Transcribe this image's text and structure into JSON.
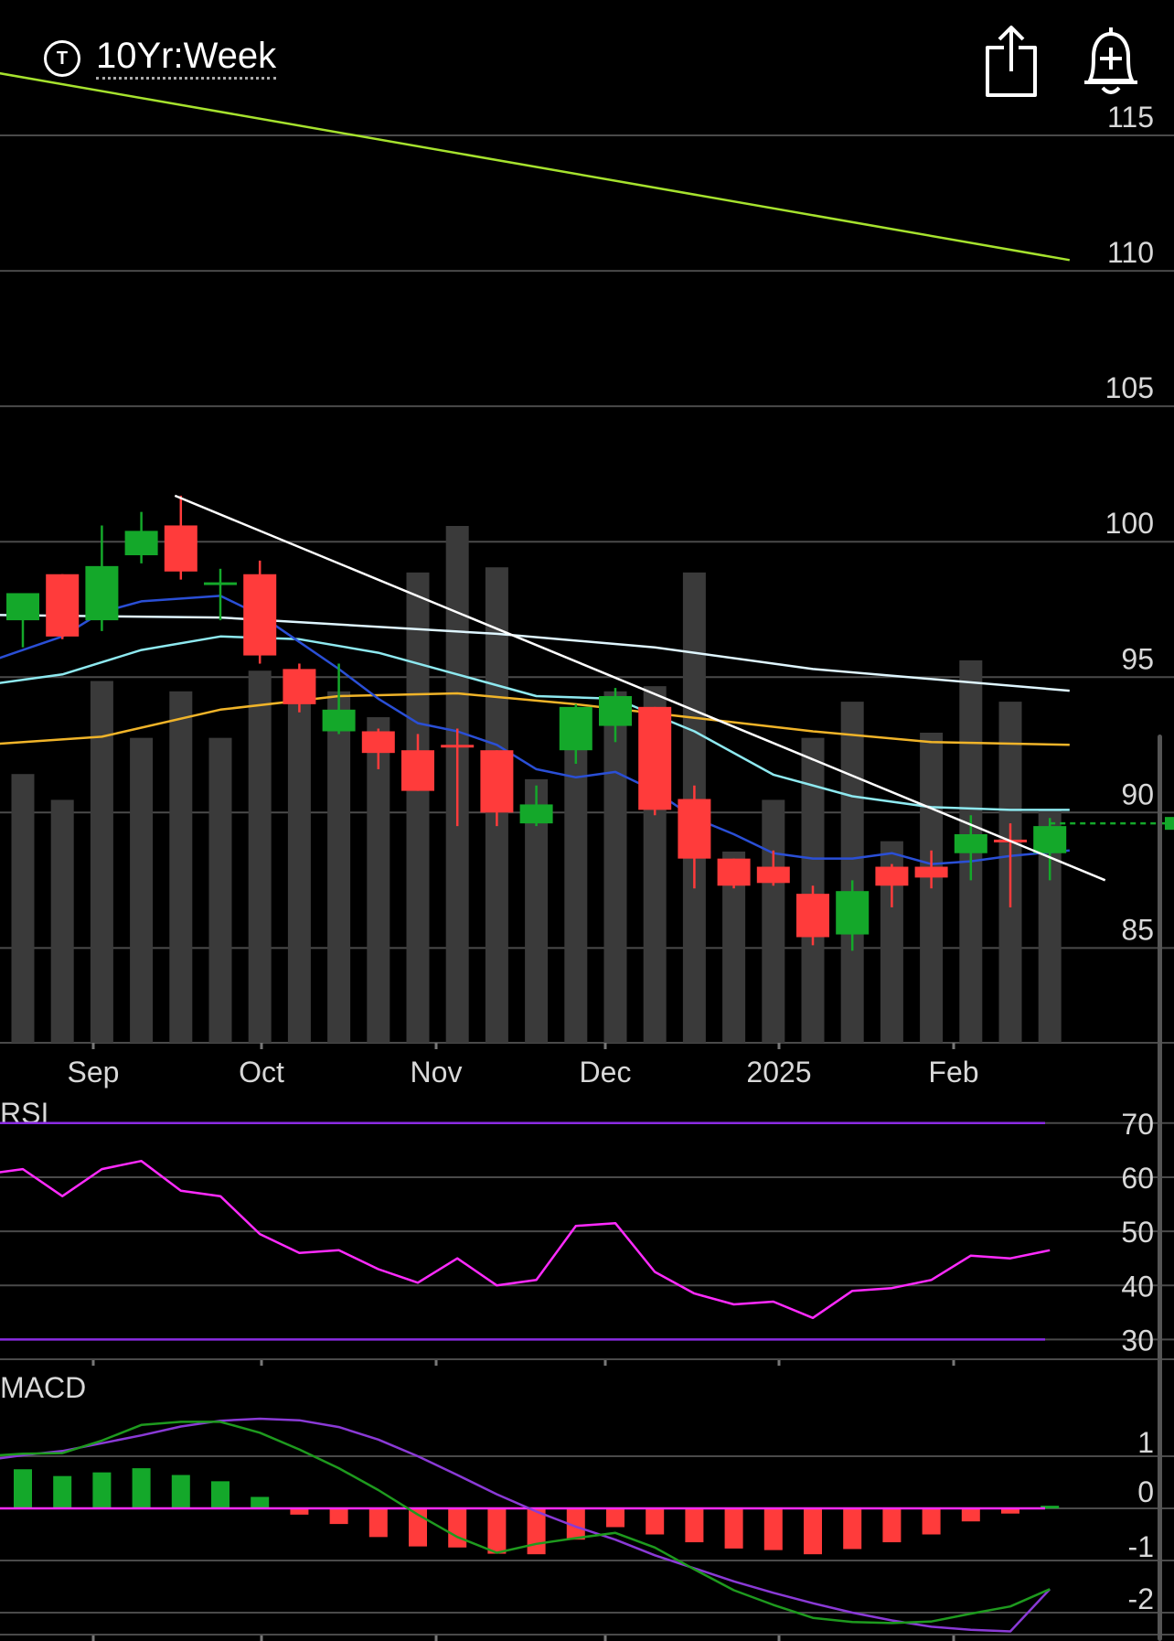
{
  "header": {
    "ticker_icon_letter": "T",
    "title": "10Yr:Week",
    "share_icon": "share-icon",
    "alert_icon": "add-alert-bell-icon"
  },
  "colors": {
    "bull": "#14a82a",
    "bear": "#ff3b3b",
    "volume": "#3a3a3a",
    "ma_green": "#a6e22e",
    "ma_white": "#dff6ff",
    "ma_cyan": "#8ee9f0",
    "ma_orange": "#f0b429",
    "ma_blue": "#2a4fd6",
    "trendline": "#ffffff",
    "rsi_line": "#ff2bff",
    "rsi_band": "#8a2be2",
    "macd_line": "#1e9a1e",
    "signal_line": "#8a3ad6",
    "macd_zero": "#ff2bff"
  },
  "chart_data": [
    {
      "type": "candlestick",
      "title": "10Yr:Week",
      "x_labels": [
        "Sep",
        "Oct",
        "Nov",
        "Dec",
        "2025",
        "Feb"
      ],
      "y_ticks": [
        85,
        90,
        95,
        100,
        105,
        110,
        115
      ],
      "ylim": [
        81.5,
        120
      ],
      "candles": [
        {
          "o": 97.1,
          "h": 98.0,
          "l": 96.1,
          "c": 98.1
        },
        {
          "o": 98.8,
          "h": 98.8,
          "l": 96.4,
          "c": 96.5
        },
        {
          "o": 97.1,
          "h": 100.6,
          "l": 96.7,
          "c": 99.1
        },
        {
          "o": 99.5,
          "h": 101.1,
          "l": 99.2,
          "c": 100.4
        },
        {
          "o": 100.6,
          "h": 101.7,
          "l": 98.6,
          "c": 98.9
        },
        {
          "o": 98.4,
          "h": 99.0,
          "l": 97.1,
          "c": 98.5
        },
        {
          "o": 98.8,
          "h": 99.3,
          "l": 95.5,
          "c": 95.8
        },
        {
          "o": 95.3,
          "h": 95.5,
          "l": 93.7,
          "c": 94.0
        },
        {
          "o": 93.0,
          "h": 95.5,
          "l": 92.9,
          "c": 93.8
        },
        {
          "o": 93.0,
          "h": 93.1,
          "l": 91.6,
          "c": 92.2
        },
        {
          "o": 92.3,
          "h": 92.9,
          "l": 90.8,
          "c": 90.8
        },
        {
          "o": 92.5,
          "h": 93.1,
          "l": 89.5,
          "c": 92.4
        },
        {
          "o": 92.3,
          "h": 92.3,
          "l": 89.5,
          "c": 90.0
        },
        {
          "o": 89.6,
          "h": 91.0,
          "l": 89.5,
          "c": 90.3
        },
        {
          "o": 92.3,
          "h": 94.0,
          "l": 91.8,
          "c": 93.9
        },
        {
          "o": 93.2,
          "h": 94.6,
          "l": 92.6,
          "c": 94.3
        },
        {
          "o": 93.9,
          "h": 93.9,
          "l": 89.9,
          "c": 90.1
        },
        {
          "o": 90.5,
          "h": 91.0,
          "l": 87.2,
          "c": 88.3
        },
        {
          "o": 88.3,
          "h": 88.3,
          "l": 87.2,
          "c": 87.3
        },
        {
          "o": 88.0,
          "h": 88.6,
          "l": 87.3,
          "c": 87.4
        },
        {
          "o": 87.0,
          "h": 87.3,
          "l": 85.1,
          "c": 85.4
        },
        {
          "o": 85.5,
          "h": 87.5,
          "l": 84.9,
          "c": 87.1
        },
        {
          "o": 88.0,
          "h": 88.1,
          "l": 86.5,
          "c": 87.3
        },
        {
          "o": 88.0,
          "h": 88.6,
          "l": 87.2,
          "c": 87.6
        },
        {
          "o": 88.5,
          "h": 89.9,
          "l": 87.5,
          "c": 89.2
        },
        {
          "o": 89.0,
          "h": 89.6,
          "l": 86.5,
          "c": 88.9
        },
        {
          "o": 88.5,
          "h": 89.8,
          "l": 87.5,
          "c": 89.5
        }
      ],
      "volume_relative": [
        0.52,
        0.47,
        0.7,
        0.59,
        0.68,
        0.59,
        0.72,
        0.7,
        0.68,
        0.63,
        0.91,
        1.0,
        0.92,
        0.51,
        0.59,
        0.68,
        0.69,
        0.91,
        0.37,
        0.47,
        0.59,
        0.66,
        0.39,
        0.6,
        0.74,
        0.66,
        0.45
      ],
      "ma_green": [
        [
          -1,
          117.4
        ],
        [
          26.5,
          110.4
        ]
      ],
      "ma_white": [
        [
          -1,
          97.3
        ],
        [
          5,
          97.2
        ],
        [
          12,
          96.6
        ],
        [
          16,
          96.1
        ],
        [
          20,
          95.3
        ],
        [
          26.5,
          94.5
        ]
      ],
      "ma_cyan": [
        [
          -1,
          94.7
        ],
        [
          1,
          95.1
        ],
        [
          3,
          96.0
        ],
        [
          5,
          96.5
        ],
        [
          7,
          96.4
        ],
        [
          9,
          95.9
        ],
        [
          11,
          95.1
        ],
        [
          13,
          94.3
        ],
        [
          15,
          94.2
        ],
        [
          17,
          93.0
        ],
        [
          19,
          91.4
        ],
        [
          21,
          90.6
        ],
        [
          23,
          90.2
        ],
        [
          25,
          90.1
        ],
        [
          26.5,
          90.1
        ]
      ],
      "ma_orange": [
        [
          -1,
          92.5
        ],
        [
          2,
          92.8
        ],
        [
          5,
          93.8
        ],
        [
          8,
          94.3
        ],
        [
          11,
          94.4
        ],
        [
          14,
          94.0
        ],
        [
          17,
          93.5
        ],
        [
          20,
          93.0
        ],
        [
          23,
          92.6
        ],
        [
          26.5,
          92.5
        ]
      ],
      "ma_blue": [
        [
          -1,
          95.5
        ],
        [
          0,
          96.0
        ],
        [
          1,
          96.5
        ],
        [
          2,
          97.4
        ],
        [
          3,
          97.8
        ],
        [
          4,
          97.9
        ],
        [
          5,
          98.0
        ],
        [
          6,
          97.3
        ],
        [
          7,
          96.3
        ],
        [
          8,
          95.3
        ],
        [
          9,
          94.2
        ],
        [
          10,
          93.3
        ],
        [
          11,
          93.0
        ],
        [
          12,
          92.5
        ],
        [
          13,
          91.6
        ],
        [
          14,
          91.3
        ],
        [
          15,
          91.5
        ],
        [
          16,
          90.8
        ],
        [
          17,
          89.8
        ],
        [
          18,
          89.2
        ],
        [
          19,
          88.5
        ],
        [
          20,
          88.3
        ],
        [
          21,
          88.3
        ],
        [
          22,
          88.5
        ],
        [
          23,
          88.1
        ],
        [
          24,
          88.2
        ],
        [
          25,
          88.4
        ],
        [
          26.5,
          88.6
        ]
      ],
      "trendline": [
        [
          3.85,
          101.7
        ],
        [
          27.4,
          87.5
        ]
      ],
      "last_price_marker": 89.6
    },
    {
      "type": "line",
      "title": "RSI",
      "y_ticks": [
        30,
        40,
        50,
        60,
        70
      ],
      "ylim": [
        25,
        72.5
      ],
      "bands": [
        30,
        70
      ],
      "x": [
        -1,
        0,
        1,
        2,
        3,
        4,
        5,
        6,
        7,
        8,
        9,
        10,
        11,
        12,
        13,
        14,
        15,
        16,
        17,
        18,
        19,
        20,
        21,
        22,
        23,
        24,
        25,
        26
      ],
      "values": [
        60.5,
        61.5,
        56.5,
        61.5,
        63.0,
        57.5,
        56.5,
        49.5,
        46.0,
        46.5,
        43.0,
        40.5,
        45.0,
        40.0,
        41.0,
        51.0,
        51.5,
        42.5,
        38.5,
        36.5,
        37.0,
        34.0,
        39.0,
        39.5,
        41.0,
        45.5,
        45.0,
        46.5
      ]
    },
    {
      "type": "bar+line",
      "title": "MACD",
      "y_ticks": [
        -2,
        -1,
        0,
        1
      ],
      "ylim": [
        -2.5,
        1.5
      ],
      "histogram": [
        0.75,
        0.62,
        0.69,
        0.77,
        0.64,
        0.52,
        0.22,
        -0.12,
        -0.3,
        -0.55,
        -0.73,
        -0.75,
        -0.87,
        -0.88,
        -0.6,
        -0.36,
        -0.5,
        -0.65,
        -0.77,
        -0.8,
        -0.88,
        -0.78,
        -0.65,
        -0.5,
        -0.25,
        -0.1,
        0.05
      ],
      "macd": [
        [
          -1,
          1.0
        ],
        [
          0,
          1.05
        ],
        [
          1,
          1.06
        ],
        [
          2,
          1.3
        ],
        [
          3,
          1.6
        ],
        [
          4,
          1.66
        ],
        [
          5,
          1.66
        ],
        [
          6,
          1.45
        ],
        [
          7,
          1.13
        ],
        [
          8,
          0.77
        ],
        [
          9,
          0.35
        ],
        [
          10,
          -0.12
        ],
        [
          11,
          -0.55
        ],
        [
          12,
          -0.85
        ],
        [
          13,
          -0.68
        ],
        [
          14,
          -0.57
        ],
        [
          15,
          -0.47
        ],
        [
          16,
          -0.75
        ],
        [
          17,
          -1.17
        ],
        [
          18,
          -1.57
        ],
        [
          19,
          -1.85
        ],
        [
          20,
          -2.1
        ],
        [
          21,
          -2.18
        ],
        [
          22,
          -2.2
        ],
        [
          23,
          -2.17
        ],
        [
          24,
          -2.02
        ],
        [
          25,
          -1.88
        ],
        [
          26,
          -1.55
        ]
      ],
      "signal": [
        [
          -1,
          0.92
        ],
        [
          0,
          1.02
        ],
        [
          1,
          1.1
        ],
        [
          2,
          1.25
        ],
        [
          3,
          1.4
        ],
        [
          4,
          1.57
        ],
        [
          5,
          1.68
        ],
        [
          6,
          1.72
        ],
        [
          7,
          1.69
        ],
        [
          8,
          1.56
        ],
        [
          9,
          1.32
        ],
        [
          10,
          1.0
        ],
        [
          11,
          0.64
        ],
        [
          12,
          0.27
        ],
        [
          13,
          -0.06
        ],
        [
          14,
          -0.35
        ],
        [
          15,
          -0.6
        ],
        [
          16,
          -0.9
        ],
        [
          17,
          -1.15
        ],
        [
          18,
          -1.4
        ],
        [
          19,
          -1.62
        ],
        [
          20,
          -1.82
        ],
        [
          21,
          -2.0
        ],
        [
          22,
          -2.15
        ],
        [
          23,
          -2.27
        ],
        [
          24,
          -2.33
        ],
        [
          25,
          -2.36
        ],
        [
          26,
          -1.55
        ]
      ]
    }
  ]
}
